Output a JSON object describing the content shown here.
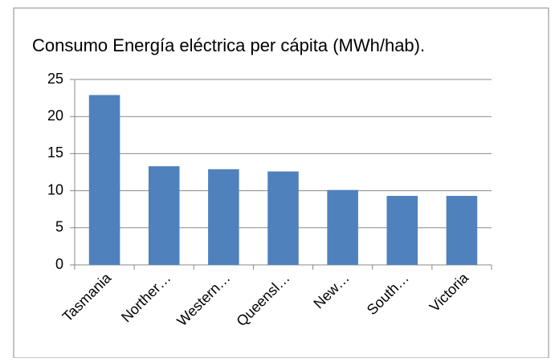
{
  "chart_data": {
    "type": "bar",
    "title": "Consumo Energía eléctrica per cápita (MWh/hab).",
    "categories": [
      "Tasmania",
      "Norther…",
      "Western…",
      "Queensl…",
      "New…",
      "South…",
      "Victoria"
    ],
    "values": [
      22.9,
      13.3,
      12.9,
      12.6,
      10.1,
      9.3,
      9.3
    ],
    "color": "#4f81bd",
    "ylim": [
      0,
      25
    ],
    "yticks": [
      0,
      5,
      10,
      15,
      20,
      25
    ],
    "grid": true
  }
}
